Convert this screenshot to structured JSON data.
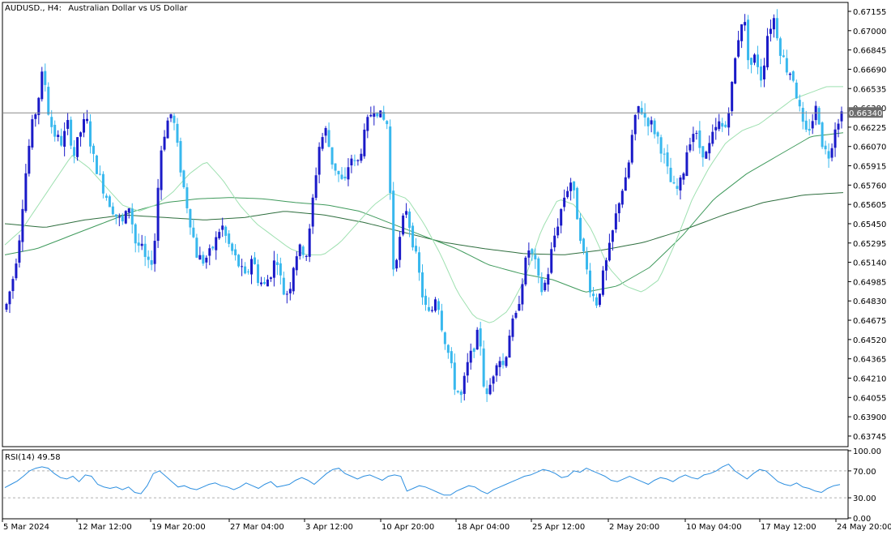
{
  "header": {
    "symbol": "AUDUSD., H4:",
    "description": "Australian Dollar vs US Dollar"
  },
  "rsi_panel": {
    "label": "RSI(14) 49.58"
  },
  "current_price_label": "0.66340",
  "colors": {
    "bull_candle": "#1a1ac8",
    "bear_candle": "#38b8ee",
    "ma_fast": "#9ee0b0",
    "ma_mid": "#3f9a5c",
    "ma_slow": "#2e6e3e",
    "rsi_line": "#2d8fe0",
    "price_line": "#8a8a8a",
    "label_bg": "#6d6d6d"
  },
  "chart_data": [
    {
      "type": "candlestick",
      "symbol": "AUDUSD.",
      "timeframe": "H4",
      "y_ticks": [
        "0.67155",
        "0.67000",
        "0.66845",
        "0.66690",
        "0.66535",
        "0.66380",
        "0.66225",
        "0.66070",
        "0.65915",
        "0.65760",
        "0.65605",
        "0.65450",
        "0.65295",
        "0.65140",
        "0.64985",
        "0.64830",
        "0.64675",
        "0.64520",
        "0.64365",
        "0.64210",
        "0.64055",
        "0.63900",
        "0.63745"
      ],
      "ylim": [
        0.6366,
        0.6722
      ],
      "x_ticks": [
        "5 Mar 2024",
        "12 Mar 12:00",
        "19 Mar 20:00",
        "27 Mar 04:00",
        "3 Apr 12:00",
        "10 Apr 20:00",
        "18 Apr 04:00",
        "25 Apr 12:00",
        "2 May 20:00",
        "10 May 04:00",
        "17 May 12:00",
        "24 May 20:00"
      ],
      "horizontal_line": 0.6634,
      "close_path": [
        0.648,
        0.65,
        0.653,
        0.658,
        0.662,
        0.664,
        0.667,
        0.6628,
        0.6615,
        0.661,
        0.6625,
        0.66,
        0.6618,
        0.663,
        0.66,
        0.6585,
        0.657,
        0.656,
        0.655,
        0.6545,
        0.656,
        0.653,
        0.6525,
        0.651,
        0.652,
        0.66,
        0.6625,
        0.6635,
        0.66,
        0.657,
        0.6545,
        0.652,
        0.6515,
        0.652,
        0.653,
        0.6545,
        0.653,
        0.652,
        0.651,
        0.65,
        0.652,
        0.65,
        0.6495,
        0.6505,
        0.652,
        0.649,
        0.649,
        0.652,
        0.6525,
        0.652,
        0.657,
        0.661,
        0.662,
        0.6595,
        0.6585,
        0.6575,
        0.66,
        0.659,
        0.661,
        0.663,
        0.664,
        0.663,
        0.6625,
        0.651,
        0.653,
        0.656,
        0.6535,
        0.651,
        0.648,
        0.647,
        0.649,
        0.646,
        0.644,
        0.6415,
        0.6405,
        0.643,
        0.6445,
        0.646,
        0.64,
        0.642,
        0.644,
        0.643,
        0.646,
        0.647,
        0.65,
        0.6525,
        0.6515,
        0.649,
        0.65,
        0.653,
        0.655,
        0.657,
        0.658,
        0.655,
        0.652,
        0.6495,
        0.648,
        0.65,
        0.652,
        0.6545,
        0.657,
        0.658,
        0.662,
        0.664,
        0.663,
        0.6625,
        0.6615,
        0.66,
        0.658,
        0.657,
        0.658,
        0.661,
        0.662,
        0.6605,
        0.66,
        0.6615,
        0.6625,
        0.662,
        0.665,
        0.669,
        0.6715,
        0.667,
        0.668,
        0.666,
        0.67,
        0.671,
        0.6685,
        0.667,
        0.6665,
        0.664,
        0.6615,
        0.6625,
        0.664,
        0.6605,
        0.66,
        0.6625,
        0.6634
      ],
      "ma_fast_path": [
        0.6528,
        0.654,
        0.656,
        0.658,
        0.66,
        0.659,
        0.6575,
        0.656,
        0.6555,
        0.656,
        0.657,
        0.6585,
        0.6595,
        0.658,
        0.656,
        0.6545,
        0.6535,
        0.6525,
        0.652,
        0.652,
        0.653,
        0.6545,
        0.656,
        0.657,
        0.6565,
        0.6545,
        0.652,
        0.649,
        0.647,
        0.6465,
        0.6475,
        0.65,
        0.654,
        0.6565,
        0.656,
        0.654,
        0.651,
        0.6495,
        0.649,
        0.65,
        0.653,
        0.6565,
        0.659,
        0.661,
        0.662,
        0.6625,
        0.6635,
        0.6645,
        0.665,
        0.6655,
        0.6655
      ],
      "ma_mid_path": [
        0.652,
        0.6525,
        0.6535,
        0.6545,
        0.6555,
        0.6562,
        0.6565,
        0.6566,
        0.6565,
        0.6562,
        0.656,
        0.6555,
        0.6545,
        0.6535,
        0.6525,
        0.6512,
        0.6505,
        0.65,
        0.649,
        0.6495,
        0.651,
        0.6535,
        0.6565,
        0.6585,
        0.66,
        0.6615,
        0.6618
      ],
      "ma_slow_path": [
        0.6545,
        0.6542,
        0.6548,
        0.6552,
        0.655,
        0.6548,
        0.655,
        0.6555,
        0.6552,
        0.6546,
        0.6538,
        0.653,
        0.6525,
        0.6521,
        0.652,
        0.6524,
        0.653,
        0.654,
        0.6552,
        0.6562,
        0.6568,
        0.657
      ]
    },
    {
      "type": "line",
      "name": "RSI(14)",
      "ylim": [
        0,
        100
      ],
      "y_ticks": [
        "100.00",
        "70.00",
        "30.00",
        "0.00"
      ],
      "levels": [
        70,
        30
      ],
      "last_value": 49.58,
      "values": [
        45,
        50,
        55,
        62,
        70,
        74,
        76,
        74,
        66,
        60,
        58,
        62,
        54,
        64,
        62,
        50,
        46,
        44,
        46,
        42,
        46,
        38,
        36,
        48,
        66,
        70,
        62,
        54,
        46,
        48,
        44,
        42,
        46,
        50,
        52,
        48,
        46,
        42,
        46,
        52,
        48,
        44,
        50,
        54,
        46,
        48,
        50,
        56,
        60,
        56,
        50,
        58,
        66,
        72,
        74,
        66,
        62,
        58,
        62,
        64,
        60,
        56,
        62,
        64,
        62,
        40,
        44,
        48,
        46,
        42,
        38,
        34,
        34,
        40,
        44,
        48,
        46,
        40,
        36,
        42,
        46,
        50,
        54,
        58,
        62,
        64,
        68,
        72,
        70,
        66,
        60,
        62,
        70,
        68,
        74,
        70,
        66,
        62,
        56,
        54,
        58,
        62,
        58,
        54,
        50,
        56,
        60,
        58,
        54,
        60,
        64,
        60,
        58,
        64,
        66,
        70,
        76,
        80,
        70,
        64,
        58,
        66,
        72,
        70,
        62,
        54,
        50,
        48,
        52,
        46,
        44,
        40,
        38,
        44,
        48,
        49.58
      ]
    }
  ]
}
